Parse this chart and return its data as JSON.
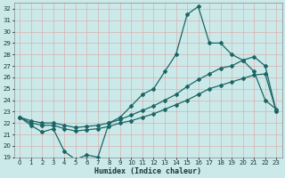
{
  "title": "",
  "xlabel": "Humidex (Indice chaleur)",
  "ylabel": "",
  "bg_color": "#cce9e9",
  "grid_color": "#b0d8d8",
  "line_color": "#1a6666",
  "xlim": [
    -0.5,
    23.5
  ],
  "ylim": [
    19,
    32.5
  ],
  "xticks": [
    0,
    1,
    2,
    3,
    4,
    5,
    6,
    7,
    8,
    9,
    10,
    11,
    12,
    13,
    14,
    15,
    16,
    17,
    18,
    19,
    20,
    21,
    22,
    23
  ],
  "yticks": [
    19,
    20,
    21,
    22,
    23,
    24,
    25,
    26,
    27,
    28,
    29,
    30,
    31,
    32
  ],
  "series1_x": [
    0,
    1,
    2,
    3,
    4,
    5,
    6,
    7,
    8,
    9,
    10,
    11,
    12,
    13,
    14,
    15,
    16,
    17,
    18,
    19,
    20,
    21,
    22,
    23
  ],
  "series1_y": [
    22.5,
    21.8,
    21.2,
    21.5,
    19.5,
    18.8,
    19.2,
    19.0,
    22.0,
    22.5,
    23.5,
    24.5,
    25.0,
    26.5,
    28.0,
    31.5,
    32.2,
    29.0,
    29.0,
    28.0,
    27.5,
    26.5,
    24.0,
    23.2
  ],
  "series2_x": [
    0,
    1,
    2,
    3,
    4,
    5,
    6,
    7,
    8,
    9,
    10,
    11,
    12,
    13,
    14,
    15,
    16,
    17,
    18,
    19,
    20,
    21,
    22,
    23
  ],
  "series2_y": [
    22.5,
    22.2,
    22.0,
    22.0,
    21.8,
    21.6,
    21.7,
    21.8,
    22.0,
    22.3,
    22.7,
    23.1,
    23.5,
    24.0,
    24.5,
    25.2,
    25.8,
    26.3,
    26.8,
    27.0,
    27.5,
    27.8,
    27.0,
    23.0
  ],
  "series3_x": [
    0,
    1,
    2,
    3,
    4,
    5,
    6,
    7,
    8,
    9,
    10,
    11,
    12,
    13,
    14,
    15,
    16,
    17,
    18,
    19,
    20,
    21,
    22,
    23
  ],
  "series3_y": [
    22.5,
    22.0,
    21.8,
    21.8,
    21.5,
    21.3,
    21.4,
    21.5,
    21.7,
    22.0,
    22.2,
    22.5,
    22.8,
    23.2,
    23.6,
    24.0,
    24.5,
    25.0,
    25.3,
    25.6,
    25.9,
    26.2,
    26.3,
    23.0
  ]
}
